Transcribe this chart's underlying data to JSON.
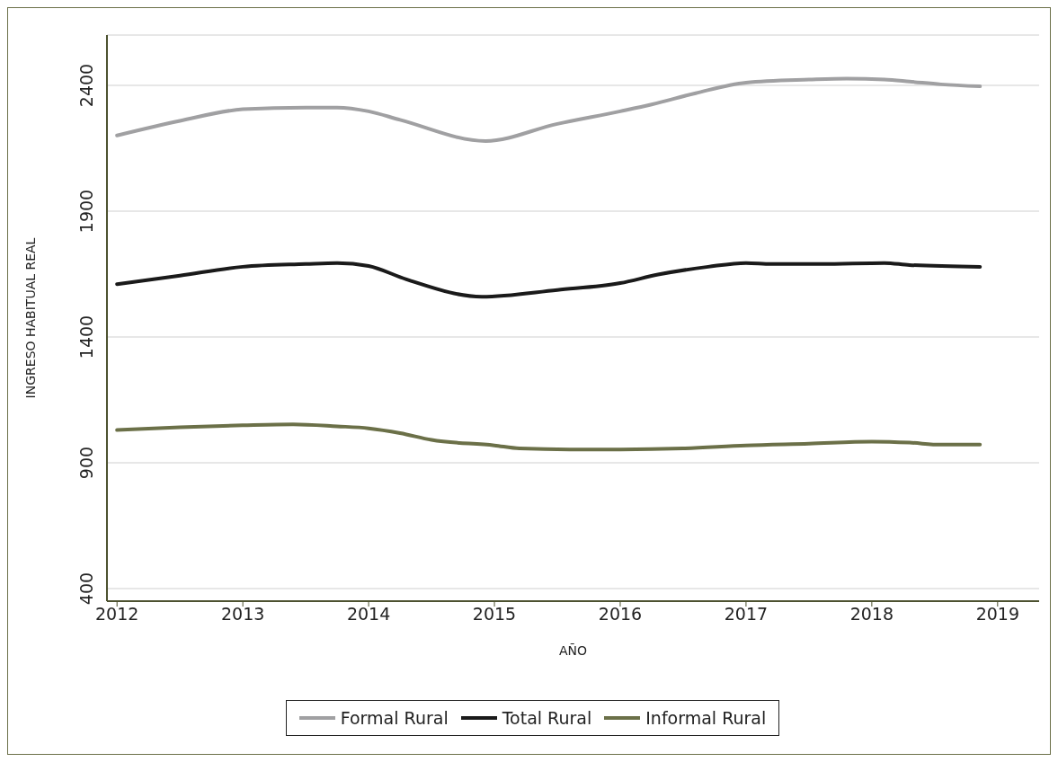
{
  "chart_data": {
    "type": "line",
    "xlabel": "AÑO",
    "ylabel": "INGRESO HABITUAL REAL",
    "xlim": [
      2011.92,
      2019.33
    ],
    "xticks": [
      2012,
      2013,
      2014,
      2015,
      2016,
      2017,
      2018,
      2019
    ],
    "ylim": [
      350,
      2600
    ],
    "yticks": [
      400,
      900,
      1400,
      1900,
      2400
    ],
    "grid": "y",
    "legend": "bottom",
    "marker": "none",
    "line_style": "solid",
    "series": [
      {
        "name": "Formal Rural",
        "color": "#a0a0a2",
        "x": [
          2012,
          2012.5,
          2013,
          2013.5,
          2013.75,
          2014,
          2014.25,
          2014.93,
          2015.5,
          2016,
          2016.25,
          2016.6,
          2017,
          2017.5,
          2017.8,
          2018.1,
          2018.3,
          2018.55,
          2018.86
        ],
        "values": [
          2201,
          2259,
          2305,
          2312,
          2312,
          2297,
          2263,
          2179,
          2247,
          2297,
          2324,
          2369,
          2411,
          2423,
          2427,
          2423,
          2415,
          2404,
          2396
        ]
      },
      {
        "name": "Total Rural",
        "color": "#1a1a1a",
        "x": [
          2012,
          2012.5,
          2013,
          2013.5,
          2013.75,
          2014,
          2014.3,
          2014.9,
          2015.5,
          2016,
          2016.3,
          2016.7,
          2017,
          2017.2,
          2017.6,
          2018.1,
          2018.3,
          2018.86
        ],
        "values": [
          1610,
          1644,
          1679,
          1690,
          1694,
          1682,
          1629,
          1560,
          1587,
          1614,
          1648,
          1679,
          1694,
          1690,
          1690,
          1694,
          1686,
          1679
        ]
      },
      {
        "name": "Informal Rural",
        "color": "#6b7048",
        "x": [
          2012,
          2012.5,
          2013,
          2013.4,
          2013.75,
          2014,
          2014.25,
          2014.5,
          2015,
          2015.2,
          2015.6,
          2016,
          2016.5,
          2017,
          2017.5,
          2018,
          2018.3,
          2018.55,
          2018.86
        ],
        "values": [
          1030,
          1041,
          1049,
          1053,
          1045,
          1037,
          1018,
          991,
          969,
          957,
          953,
          953,
          957,
          969,
          976,
          984,
          980,
          972,
          972
        ]
      }
    ]
  }
}
